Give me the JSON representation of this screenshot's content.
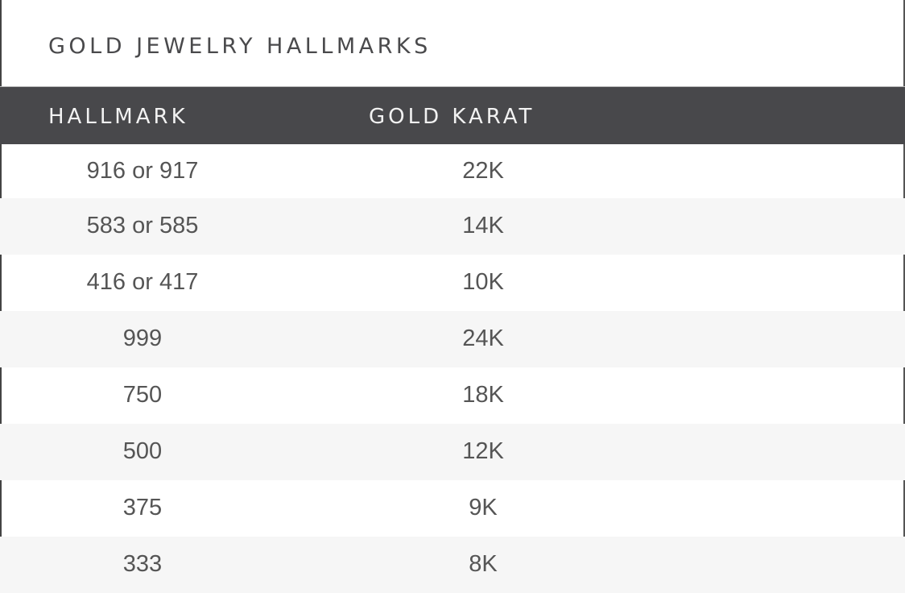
{
  "title": "GOLD JEWELRY HALLMARKS",
  "columns": [
    "HALLMARK",
    "GOLD KARAT"
  ],
  "rows": [
    [
      "916 or 917",
      "22K"
    ],
    [
      "583 or 585",
      "14K"
    ],
    [
      "416 or 417",
      "10K"
    ],
    [
      "999",
      "24K"
    ],
    [
      "750",
      "18K"
    ],
    [
      "500",
      "12K"
    ],
    [
      "375",
      "9K"
    ],
    [
      "333",
      "8K"
    ]
  ],
  "colors": {
    "header_bg": "#48484b",
    "alt_row_bg": "#f6f6f6",
    "text": "#555555"
  }
}
